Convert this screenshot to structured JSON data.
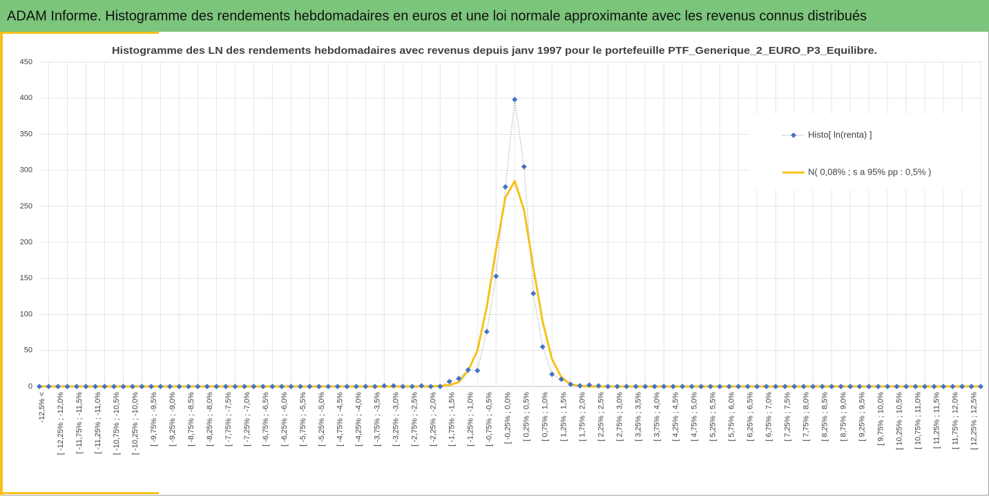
{
  "header": {
    "title": "ADAM Informe. Histogramme des rendements hebdomadaires en euros et une loi normale approximante avec les revenus connus distribués"
  },
  "chart_data": {
    "type": "line",
    "title": "Histogramme des LN des rendements hebdomadaires avec revenus depuis janv 1997 pour le portefeuille PTF_Generique_2_EURO_P3_Equilibre.",
    "categories": [
      "-12,5% <",
      null,
      "[ -12,25% ; -12,0%",
      null,
      "[ -11,75% ; -11,5%",
      null,
      "[ -11,25% ; -11,0%",
      null,
      "[ -10,75% ; -10,5%",
      null,
      "[ -10,25% ; -10,0%",
      null,
      "[ -9,75% ; -9,5%",
      null,
      "[ -9,25% ; -9,0%",
      null,
      "[ -8,75% ; -8,5%",
      null,
      "[ -8,25% ; -8,0%",
      null,
      "[ -7,75% ; -7,5%",
      null,
      "[ -7,25% ; -7,0%",
      null,
      "[ -6,75% ; -6,5%",
      null,
      "[ -6,25% ; -6,0%",
      null,
      "[ -5,75% ; -5,5%",
      null,
      "[ -5,25% ; -5,0%",
      null,
      "[ -4,75% ; -4,5%",
      null,
      "[ -4,25% ; -4,0%",
      null,
      "[ -3,75% ; -3,5%",
      null,
      "[ -3,25% ; -3,0%",
      null,
      "[ -2,75% ; -2,5%",
      null,
      "[ -2,25% ; -2,0%",
      null,
      "[ -1,75% ; -1,5%",
      null,
      "[ -1,25% ; -1,0%",
      null,
      "[ -0,75% ; -0,5%",
      null,
      "[ -0,25% ; 0,0%",
      null,
      "[ 0,25% ; 0,5%",
      null,
      "[ 0,75% ; 1,0%",
      null,
      "[ 1,25% ; 1,5%",
      null,
      "[ 1,75% ; 2,0%",
      null,
      "[ 2,25% ; 2,5%",
      null,
      "[ 2,75% ; 3,0%",
      null,
      "[ 3,25% ; 3,5%",
      null,
      "[ 3,75% ; 4,0%",
      null,
      "[ 4,25% ; 4,5%",
      null,
      "[ 4,75% ; 5,0%",
      null,
      "[ 5,25% ; 5,5%",
      null,
      "[ 5,75% ; 6,0%",
      null,
      "[ 6,25% ; 6,5%",
      null,
      "[ 6,75% ; 7,0%",
      null,
      "[ 7,25% ; 7,5%",
      null,
      "[ 7,75% ; 8,0%",
      null,
      "[ 8,25% ; 8,5%",
      null,
      "[ 8,75% ; 9,0%",
      null,
      "[ 9,25% ; 9,5%",
      null,
      "[ 9,75% ; 10,0%",
      null,
      "[ 10,25% ; 10,5%",
      null,
      "[ 10,75% ; 11,0%",
      null,
      "[ 11,25% ; 11,5%",
      null,
      "[ 11,75% ; 12,0%",
      null,
      "[ 12,25% ; 12,5%",
      null
    ],
    "series": [
      {
        "name": "Histo[ ln(renta) ]",
        "color": "#4472c4",
        "line_color": "#a5a5a5",
        "line_style": "dotted",
        "marker": "diamond",
        "values": [
          0,
          0,
          0,
          0,
          0,
          0,
          0,
          0,
          0,
          0,
          0,
          0,
          0,
          0,
          0,
          0,
          0,
          0,
          0,
          0,
          0,
          0,
          0,
          0,
          0,
          0,
          0,
          0,
          0,
          0,
          0,
          0,
          0,
          0,
          0,
          0,
          0,
          1,
          1,
          0,
          0,
          1,
          0,
          0,
          7,
          11,
          23,
          22,
          76,
          153,
          277,
          398,
          305,
          129,
          55,
          17,
          10,
          3,
          1,
          2,
          1,
          0,
          0,
          0,
          0,
          0,
          0,
          0,
          0,
          0,
          0,
          0,
          0,
          0,
          0,
          0,
          0,
          0,
          0,
          0,
          0,
          0,
          0,
          0,
          0,
          0,
          0,
          0,
          0,
          0,
          0,
          0,
          0,
          0,
          0,
          0,
          0,
          0,
          0,
          0,
          0,
          0
        ]
      },
      {
        "name": "N( 0,08% ; s a 95% pp : 0,5% )",
        "color": "#f5c11a",
        "line_style": "solid",
        "values": [
          0,
          0,
          0,
          0,
          0,
          0,
          0,
          0,
          0,
          0,
          0,
          0,
          0,
          0,
          0,
          0,
          0,
          0,
          0,
          0,
          0,
          0,
          0,
          0,
          0,
          0,
          0,
          0,
          0,
          0,
          0,
          0,
          0,
          0,
          0,
          0,
          0,
          0,
          0,
          0,
          0,
          0,
          0,
          1,
          2,
          6,
          22,
          50,
          110,
          190,
          262,
          285,
          245,
          165,
          90,
          38,
          13,
          3,
          1,
          0,
          0,
          0,
          0,
          0,
          0,
          0,
          0,
          0,
          0,
          0,
          0,
          0,
          0,
          0,
          0,
          0,
          0,
          0,
          0,
          0,
          0,
          0,
          0,
          0,
          0,
          0,
          0,
          0,
          0,
          0,
          0,
          0,
          0,
          0,
          0,
          0,
          0,
          0,
          0,
          0,
          0,
          0
        ]
      }
    ],
    "ylim": [
      0,
      450
    ],
    "yticks": [
      0,
      50,
      100,
      150,
      200,
      250,
      300,
      350,
      400,
      450
    ],
    "grid": true,
    "legend": "right"
  }
}
